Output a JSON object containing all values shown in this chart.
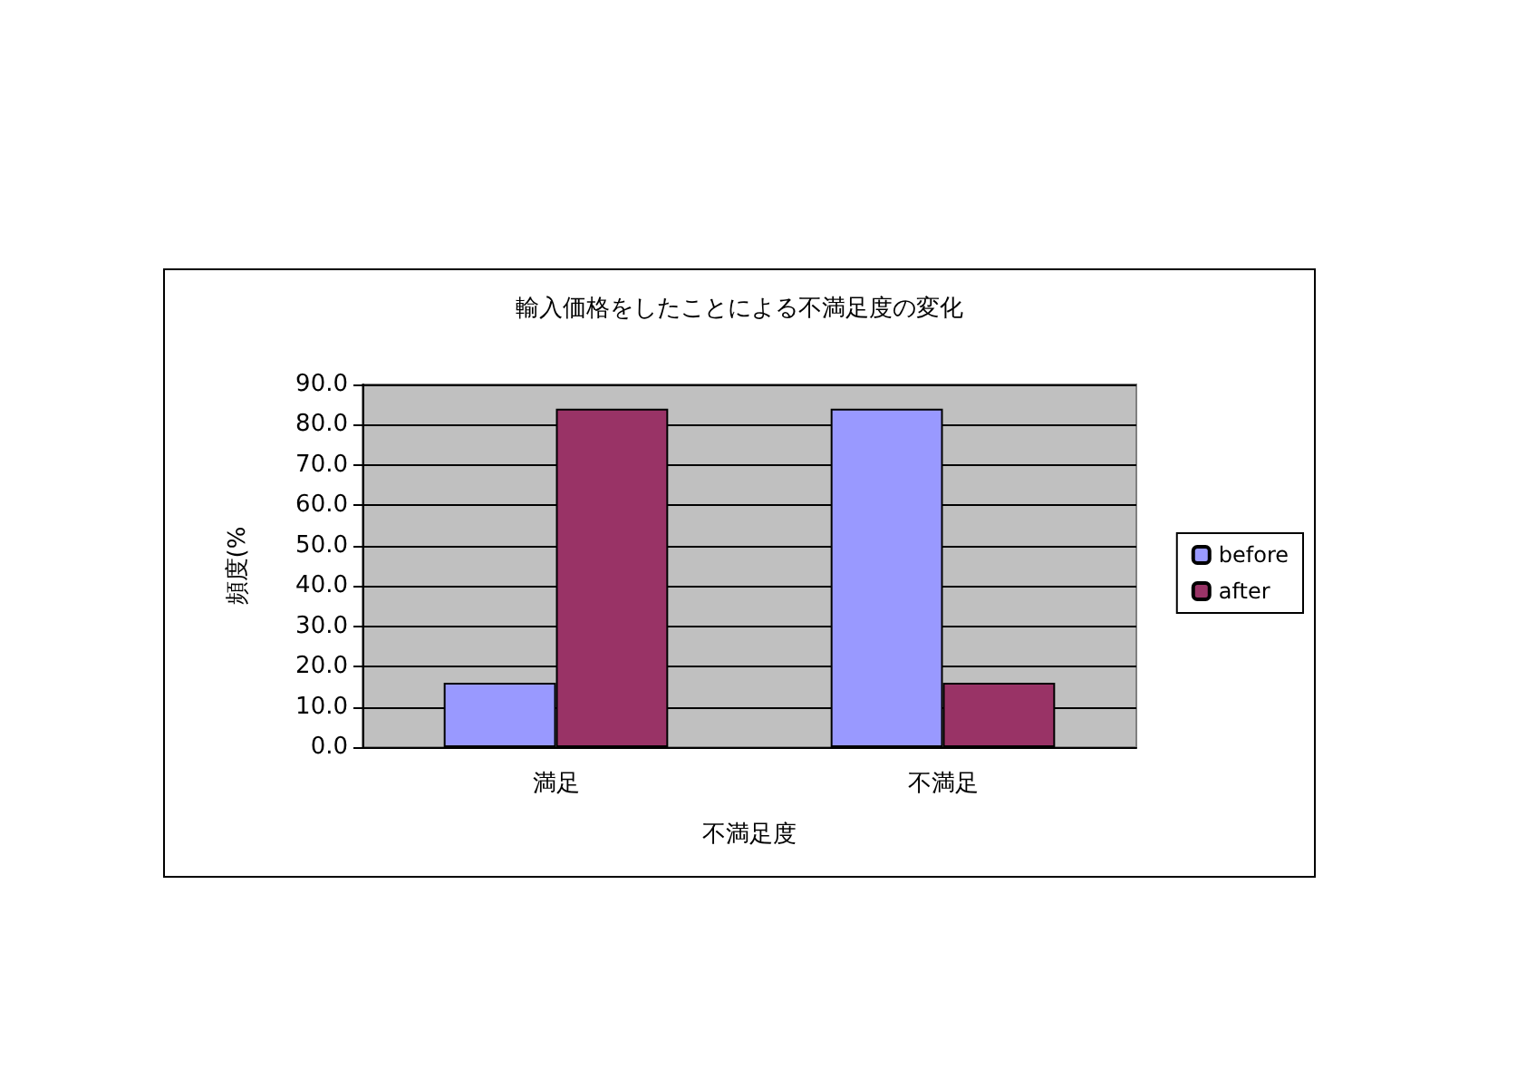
{
  "chart_data": {
    "type": "bar",
    "title": "輸入価格をしたことによる不満足度の変化",
    "xlabel": "不満足度",
    "ylabel": "頻度(%",
    "categories": [
      "満足",
      "不満足"
    ],
    "series": [
      {
        "name": "before",
        "color": "#9999ff",
        "values": [
          16,
          84
        ]
      },
      {
        "name": "after",
        "color": "#993366",
        "values": [
          84,
          16
        ]
      }
    ],
    "ylim": [
      0,
      90
    ],
    "yticks": [
      {
        "value": 0,
        "label": "0.0"
      },
      {
        "value": 10,
        "label": "10.0"
      },
      {
        "value": 20,
        "label": "20.0"
      },
      {
        "value": 30,
        "label": "30.0"
      },
      {
        "value": 40,
        "label": "40.0"
      },
      {
        "value": 50,
        "label": "50.0"
      },
      {
        "value": 60,
        "label": "60.0"
      },
      {
        "value": 70,
        "label": "70.0"
      },
      {
        "value": 80,
        "label": "80.0"
      },
      {
        "value": 90,
        "label": "90.0"
      }
    ],
    "grid": "y",
    "legend": "right"
  }
}
